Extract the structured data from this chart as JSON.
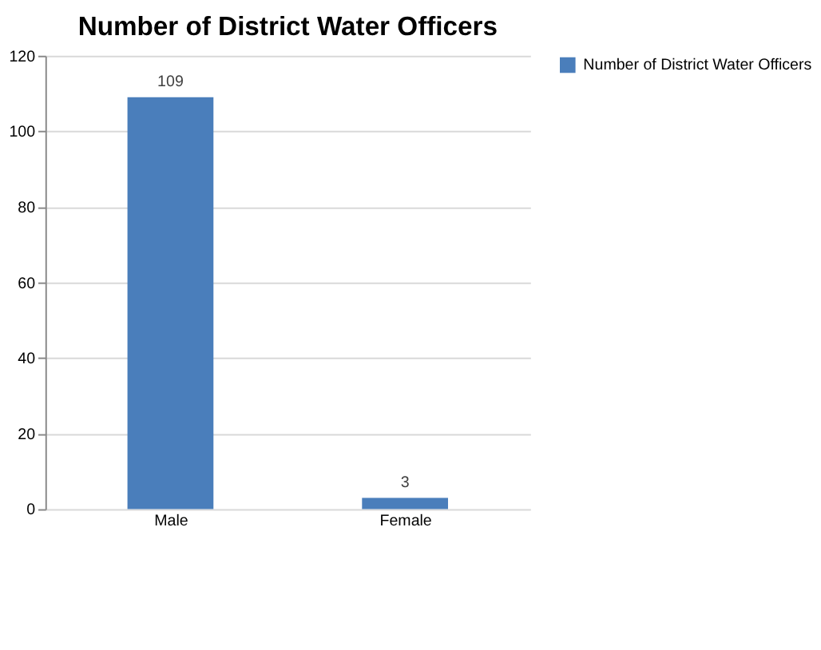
{
  "chart_data": {
    "type": "bar",
    "title": "Number of District Water Officers",
    "categories": [
      "Male",
      "Female"
    ],
    "series": [
      {
        "name": "Number of District Water Officers",
        "color": "#4a7ebb",
        "values": [
          109,
          3
        ]
      }
    ],
    "ylim": [
      0,
      120
    ],
    "yticks": [
      0,
      20,
      40,
      60,
      80,
      100,
      120
    ],
    "grid": "y",
    "legend": "right",
    "data_labels": true
  }
}
